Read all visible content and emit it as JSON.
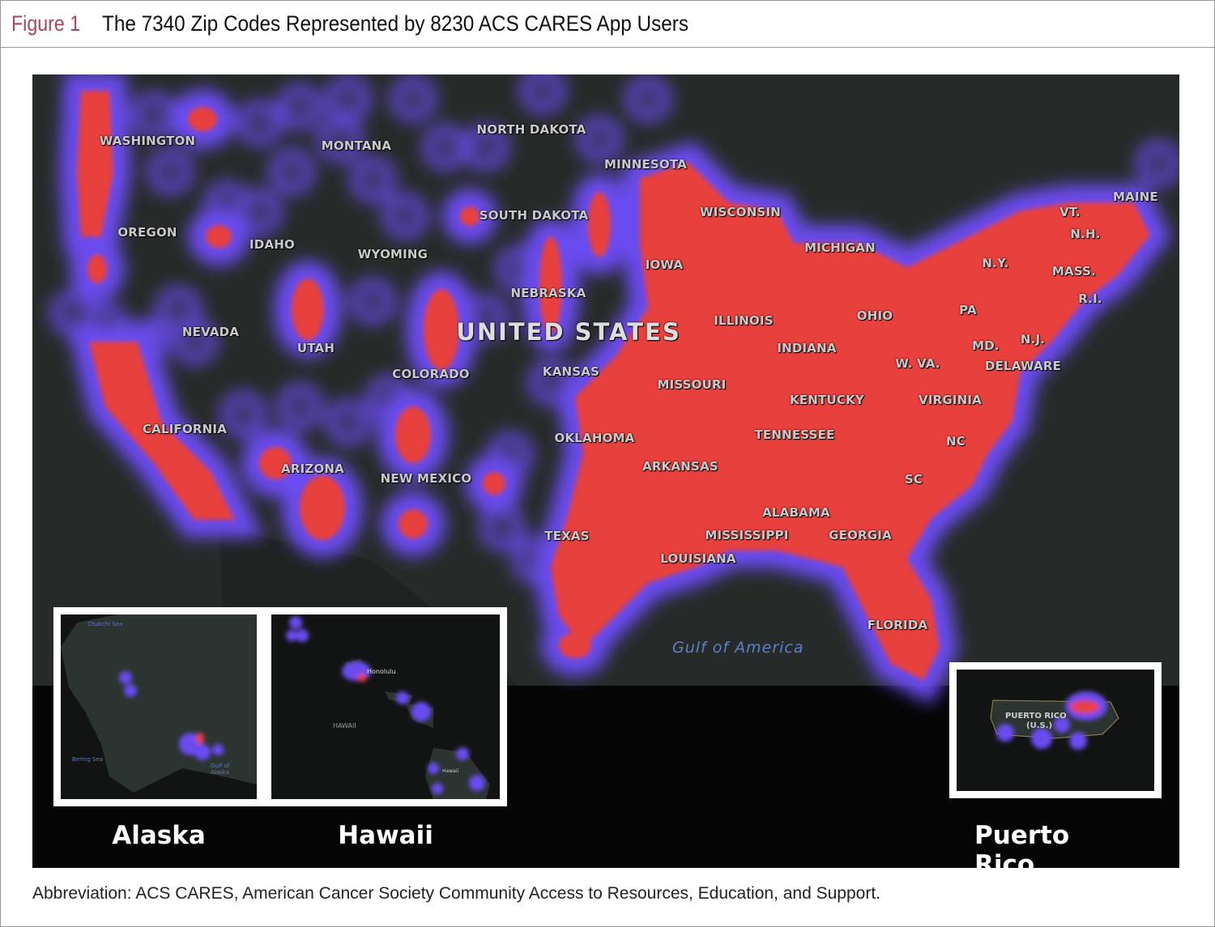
{
  "figure": {
    "number": "Figure 1",
    "title": "The 7340 Zip Codes Represented by 8230 ACS CARES App Users",
    "caption": "Abbreviation: ACS CARES, American Cancer Society Community Access to Resources, Education, and Support."
  },
  "map": {
    "country_label": "UNITED STATES",
    "water_label": "Gulf of America",
    "state_labels": [
      "WASHINGTON",
      "OREGON",
      "CALIFORNIA",
      "NEVADA",
      "IDAHO",
      "MONTANA",
      "WYOMING",
      "UTAH",
      "ARIZONA",
      "COLORADO",
      "NEW MEXICO",
      "NORTH DAKOTA",
      "SOUTH DAKOTA",
      "NEBRASKA",
      "KANSAS",
      "OKLAHOMA",
      "TEXAS",
      "MINNESOTA",
      "IOWA",
      "MISSOURI",
      "ARKANSAS",
      "LOUISIANA",
      "WISCONSIN",
      "ILLINOIS",
      "MICHIGAN",
      "INDIANA",
      "OHIO",
      "KENTUCKY",
      "TENNESSEE",
      "MISSISSIPPI",
      "ALABAMA",
      "GEORGIA",
      "FLORIDA",
      "SC",
      "NC",
      "VIRGINIA",
      "W. VA.",
      "PA",
      "N.Y.",
      "MD.",
      "DELAWARE",
      "N.J.",
      "MASS.",
      "R.I.",
      "VT.",
      "N.H.",
      "MAINE"
    ],
    "heat_colors": {
      "low": "#6a4cf0",
      "high": "#e8403c",
      "land": "#262b29",
      "background": "#050505"
    },
    "insets": {
      "alaska": {
        "title": "Alaska",
        "labels": [
          "Chukchi Sea",
          "Bering Sea",
          "Gulf of Alaska"
        ]
      },
      "hawaii": {
        "title": "Hawaii",
        "labels": [
          "Honolulu",
          "HAWAII",
          "Hawaii"
        ]
      },
      "puerto_rico": {
        "title": "Puerto Rico",
        "labels": [
          "PUERTO RICO",
          "(U.S.)"
        ]
      }
    }
  }
}
